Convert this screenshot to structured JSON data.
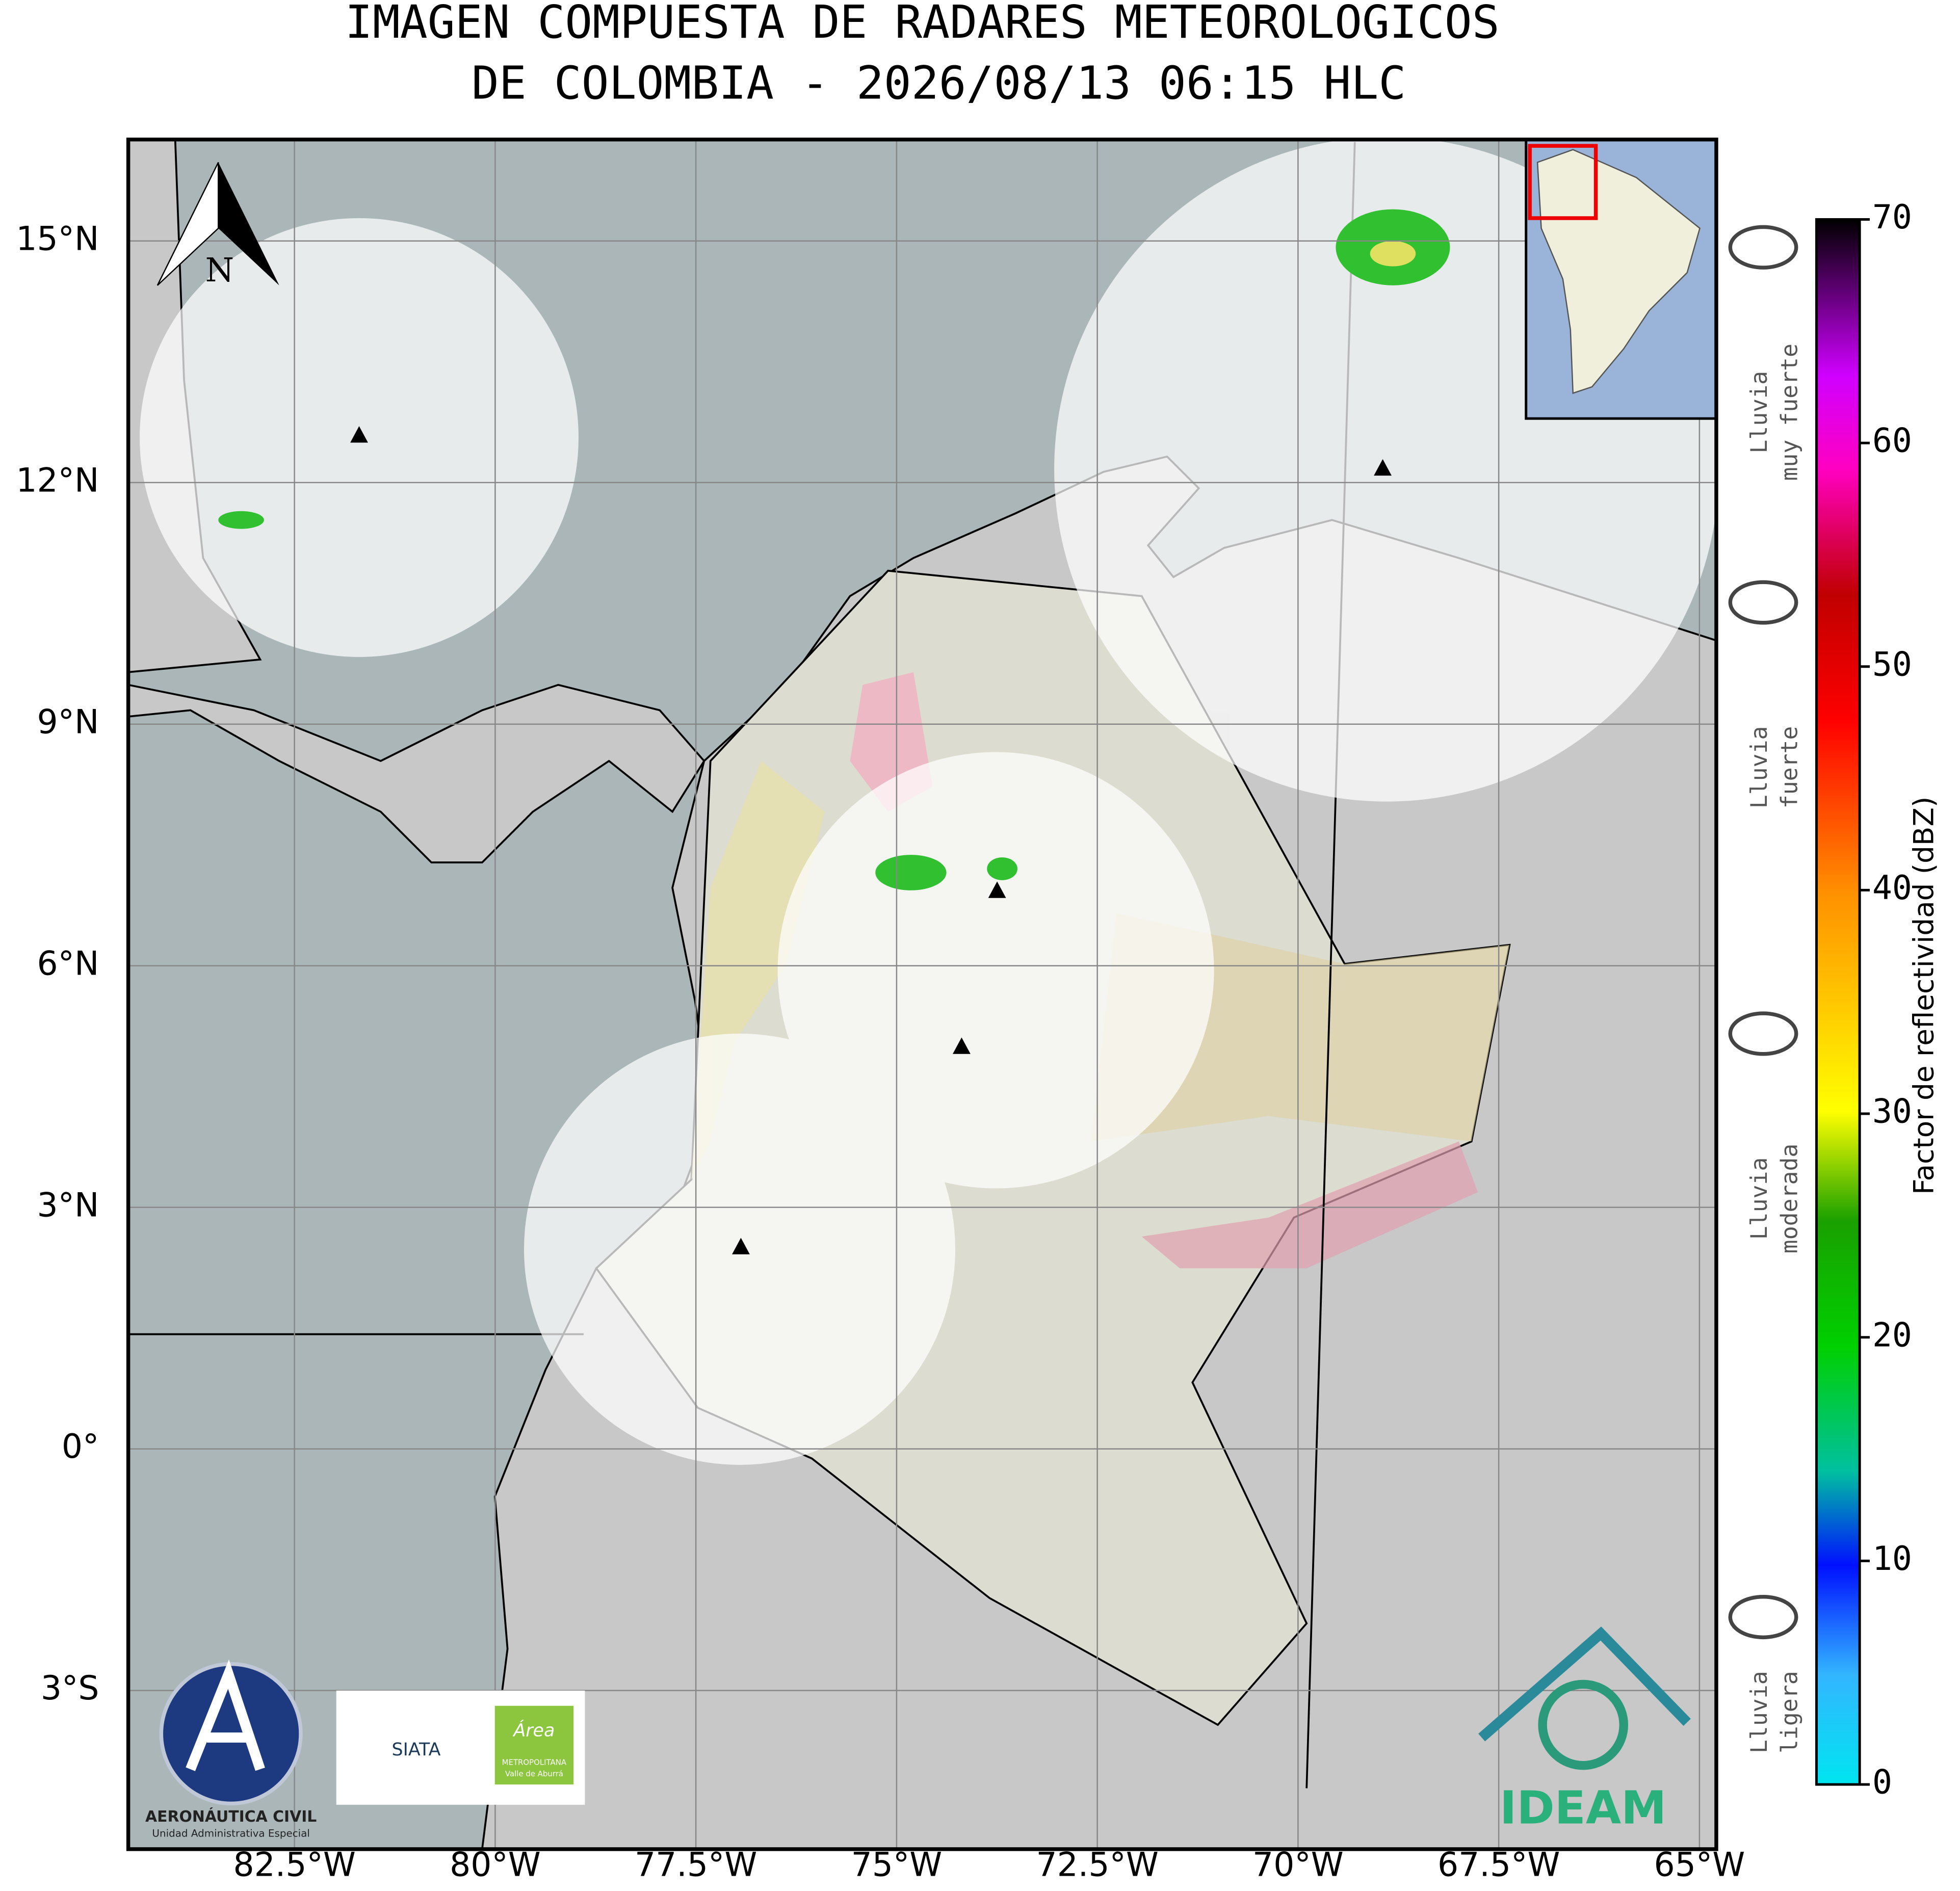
{
  "title": [
    "IMAGEN COMPUESTA DE RADARES METEOROLOGICOS",
    "DE COLOMBIA - 2026/08/13 06:15 HLC"
  ],
  "map": {
    "xlim": [
      -84.57,
      -64.79
    ],
    "ylim": [
      -4.97,
      16.26
    ],
    "xticks": [
      {
        "value": -82.5,
        "label": "82.5°W"
      },
      {
        "value": -80,
        "label": "80°W"
      },
      {
        "value": -77.5,
        "label": "77.5°W"
      },
      {
        "value": -75,
        "label": "75°W"
      },
      {
        "value": -72.5,
        "label": "72.5°W"
      },
      {
        "value": -70,
        "label": "70°W"
      },
      {
        "value": -67.5,
        "label": "67.5°W"
      },
      {
        "value": -65,
        "label": "65°W"
      }
    ],
    "yticks": [
      {
        "value": 15,
        "label": "15°N"
      },
      {
        "value": 12,
        "label": "12°N"
      },
      {
        "value": 9,
        "label": "9°N"
      },
      {
        "value": 6,
        "label": "6°N"
      },
      {
        "value": 3,
        "label": "3°N"
      },
      {
        "value": 0,
        "label": "0°"
      },
      {
        "value": -3,
        "label": "3°S"
      }
    ],
    "north_label": "N"
  },
  "colorbar": {
    "label": "Factor de reflectividad (dBZ)",
    "lim": [
      0,
      70
    ],
    "ticks": [
      0,
      10,
      20,
      30,
      40,
      50,
      60,
      70
    ]
  },
  "rain_categories": [
    [
      "Lluvia",
      "muy fuerte"
    ],
    [
      "Lluvia",
      "fuerte"
    ],
    [
      "Lluvia",
      "moderada"
    ],
    [
      "Lluvia",
      "ligera"
    ]
  ],
  "logos": {
    "aerocivil": [
      "AERONÁUTICA CIVIL",
      "Unidad Administrativa Especial"
    ],
    "siata": "SIATA",
    "area": [
      "Área",
      "METROPOLITANA",
      "Valle de Aburrá"
    ],
    "ideam": "IDEAM"
  }
}
